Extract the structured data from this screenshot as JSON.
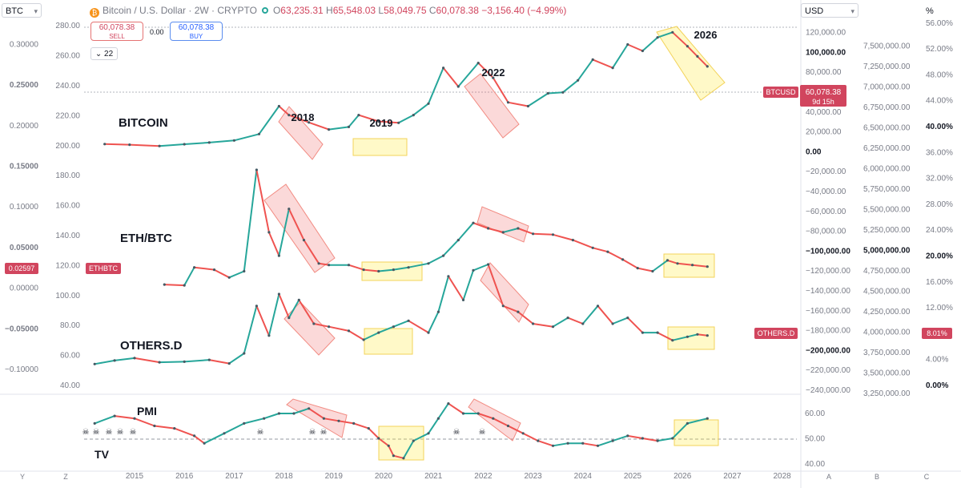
{
  "toolbar": {
    "symbol_button": "BTC",
    "currency_button": "USD",
    "percent_label": "%"
  },
  "header": {
    "title": "Bitcoin / U.S. Dollar · 2W · CRYPTO",
    "open_label": "O",
    "open_value": "63,235.31",
    "high_label": "H",
    "high_value": "65,548.03",
    "low_label": "L",
    "low_value": "58,049.75",
    "close_label": "C",
    "close_value": "60,078.38",
    "change": "−3,156.40 (−4.99%)"
  },
  "trade": {
    "sell_price": "60,078.38",
    "sell_label": "SELL",
    "spread": "0.00",
    "buy_price": "60,078.38",
    "buy_label": "BUY",
    "counter": "22"
  },
  "colors": {
    "up": "#26a69a",
    "down": "#ef5350",
    "accent_red": "#d1455e",
    "buy_blue": "#2962ff",
    "highlight_red": "rgba(239,83,80,0.22)",
    "highlight_yellow": "rgba(255,235,59,0.28)"
  },
  "chart_data": [
    {
      "type": "line",
      "series_label": "BITCOIN",
      "x": [
        2014.4,
        2014.9,
        2015.5,
        2016,
        2016.5,
        2017,
        2017.5,
        2017.9,
        2018.1,
        2018.5,
        2018.9,
        2019.3,
        2019.5,
        2019.9,
        2020.3,
        2020.6,
        2020.9,
        2021.2,
        2021.5,
        2021.9,
        2022.2,
        2022.5,
        2022.9,
        2023.3,
        2023.6,
        2023.9,
        2024.2,
        2024.6,
        2024.9,
        2025.2,
        2025.5,
        2025.8,
        2026.1,
        2026.3,
        2026.5
      ],
      "y": [
        450,
        380,
        250,
        430,
        660,
        1000,
        2500,
        17000,
        11000,
        7000,
        4000,
        5000,
        11000,
        7500,
        6800,
        11000,
        19000,
        58000,
        35000,
        65000,
        45000,
        20000,
        17000,
        28000,
        29000,
        42000,
        70000,
        58000,
        95000,
        84000,
        108000,
        118000,
        92000,
        75000,
        60078
      ],
      "yticks": [
        "−240,000.00",
        "−220,000.00",
        "−200,000.00",
        "−180,000.00",
        "−160,000.00",
        "−140,000.00",
        "−120,000.00",
        "−100,000.00",
        "−80,000.00",
        "−60,000.00",
        "−40,000.00",
        "−20,000.00",
        "0.00",
        "20,000.00",
        "40,000.00",
        "60,000.00",
        "80,000.00",
        "100,000.00",
        "120,000.00"
      ],
      "price_label": "BTCUSD",
      "price_value": "60,078.38",
      "countdown": "9d 15h",
      "annotations": [
        "2018",
        "2019",
        "2022",
        "2026"
      ]
    },
    {
      "type": "line",
      "series_label": "ETH/BTC",
      "x": [
        2015.6,
        2016,
        2016.2,
        2016.6,
        2016.9,
        2017.2,
        2017.45,
        2017.7,
        2017.9,
        2018.1,
        2018.4,
        2018.7,
        2018.9,
        2019.3,
        2019.6,
        2019.9,
        2020.2,
        2020.5,
        2020.9,
        2021.2,
        2021.5,
        2021.8,
        2022.1,
        2022.4,
        2022.7,
        2023,
        2023.4,
        2023.8,
        2024.2,
        2024.5,
        2024.8,
        2025.1,
        2025.4,
        2025.7,
        2025.9,
        2026.2,
        2026.5
      ],
      "y": [
        0.003,
        0.002,
        0.025,
        0.022,
        0.012,
        0.02,
        0.15,
        0.07,
        0.04,
        0.1,
        0.06,
        0.03,
        0.028,
        0.028,
        0.022,
        0.02,
        0.022,
        0.025,
        0.03,
        0.04,
        0.06,
        0.082,
        0.075,
        0.07,
        0.075,
        0.068,
        0.067,
        0.06,
        0.05,
        0.045,
        0.035,
        0.024,
        0.02,
        0.034,
        0.03,
        0.028,
        0.02597
      ],
      "yticks_left": [
        "−0.10000",
        "−0.05000",
        "0.00000",
        "0.05000",
        "0.10000",
        "0.15000",
        "0.20000",
        "0.25000",
        "0.30000"
      ],
      "price_label": "ETHBTC",
      "price_value": "0.02597"
    },
    {
      "type": "line",
      "series_label": "OTHERS.D",
      "x": [
        2014.2,
        2014.6,
        2015,
        2015.5,
        2016,
        2016.5,
        2016.9,
        2017.2,
        2017.45,
        2017.7,
        2017.9,
        2018.1,
        2018.3,
        2018.6,
        2018.9,
        2019.3,
        2019.6,
        2019.9,
        2020.2,
        2020.5,
        2020.9,
        2021.1,
        2021.3,
        2021.6,
        2021.8,
        2022.1,
        2022.4,
        2022.7,
        2023,
        2023.4,
        2023.7,
        2024,
        2024.3,
        2024.6,
        2024.9,
        2025.2,
        2025.5,
        2025.8,
        2026.1,
        2026.3,
        2026.5
      ],
      "y": [
        3.2,
        3.8,
        4.2,
        3.5,
        3.6,
        3.9,
        3.3,
        5,
        13,
        8,
        15,
        11,
        14,
        10,
        9.5,
        8.8,
        7.3,
        8.5,
        9.5,
        10.5,
        8.5,
        12,
        18,
        14,
        19,
        20,
        13,
        12,
        10,
        9.5,
        11,
        10,
        13,
        10,
        11,
        8.5,
        8.5,
        7.2,
        7.8,
        8.2,
        8.01
      ],
      "yticks_left_pct": [
        "0.00%",
        "4.00%",
        "8.00%",
        "12.00%",
        "16.00%",
        "20.00%",
        "24.00%",
        "28.00%",
        "32.00%",
        "36.00%",
        "40.00%",
        "44.00%",
        "48.00%",
        "52.00%",
        "56.00%"
      ],
      "price_label": "OTHERS.D",
      "price_value": "8.01%"
    },
    {
      "type": "line",
      "series_label": "PMI",
      "x": [
        2014.2,
        2014.6,
        2015,
        2015.4,
        2015.8,
        2016.2,
        2016.4,
        2016.8,
        2017.2,
        2017.6,
        2017.9,
        2018.2,
        2018.5,
        2018.8,
        2019.1,
        2019.4,
        2019.7,
        2019.9,
        2020.1,
        2020.2,
        2020.4,
        2020.6,
        2020.9,
        2021.1,
        2021.3,
        2021.6,
        2021.9,
        2022.2,
        2022.5,
        2022.8,
        2023.1,
        2023.4,
        2023.7,
        2024,
        2024.3,
        2024.6,
        2024.9,
        2025.2,
        2025.5,
        2025.8,
        2026.1,
        2026.5
      ],
      "y": [
        56,
        59,
        58,
        55,
        54,
        51,
        48,
        52,
        56,
        58,
        60,
        60,
        62,
        58,
        57,
        56,
        54,
        50,
        47,
        43,
        42,
        49,
        52,
        58,
        64,
        60,
        60,
        58,
        55,
        52,
        49,
        47,
        48,
        48,
        47,
        49,
        51,
        50,
        49,
        50,
        56,
        58
      ],
      "yticks": [
        "40.00",
        "50.00",
        "60.00"
      ],
      "reference_level": 50
    }
  ],
  "left_axis_ticks": [
    "40.00",
    "60.00",
    "80.00",
    "100.00",
    "120.00",
    "140.00",
    "160.00",
    "180.00",
    "200.00",
    "220.00",
    "240.00",
    "260.00",
    "280.00"
  ],
  "far_right_ticks": [
    "3,250,000.00",
    "3,500,000.00",
    "3,750,000.00",
    "4,000,000.00",
    "4,250,000.00",
    "4,500,000.00",
    "4,750,000.00",
    "5,000,000.00",
    "5,250,000.00",
    "5,500,000.00",
    "5,750,000.00",
    "6,000,000.00",
    "6,250,000.00",
    "6,500,000.00",
    "6,750,000.00",
    "7,000,000.00",
    "7,250,000.00",
    "7,500,000.00"
  ],
  "x_axis_ticks": [
    "2015",
    "2016",
    "2017",
    "2018",
    "2019",
    "2020",
    "2021",
    "2022",
    "2023",
    "2024",
    "2025",
    "2026",
    "2027",
    "2028"
  ],
  "bottom_buttons": [
    "Y",
    "Z",
    "A",
    "B",
    "C"
  ]
}
